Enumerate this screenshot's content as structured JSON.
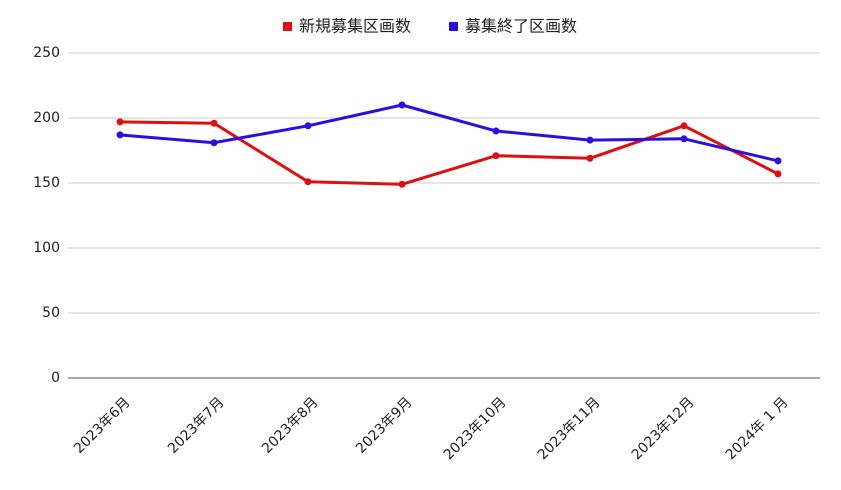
{
  "chart_data": {
    "type": "line",
    "categories": [
      "2023年6月",
      "2023年7月",
      "2023年8月",
      "2023年9月",
      "2023年10月",
      "2023年11月",
      "2023年12月",
      "2024年 1 月"
    ],
    "series": [
      {
        "name": "新規募集区画数",
        "color": "#e00f0f",
        "values": [
          197,
          196,
          151,
          149,
          171,
          169,
          194,
          157
        ]
      },
      {
        "name": "募集終了区画数",
        "color": "#2a0fe0",
        "values": [
          187,
          181,
          194,
          210,
          190,
          183,
          184,
          167
        ]
      }
    ],
    "ylim": [
      0,
      250
    ],
    "yticks": [
      0,
      50,
      100,
      150,
      200,
      250
    ],
    "grid": true,
    "legend": "top"
  }
}
